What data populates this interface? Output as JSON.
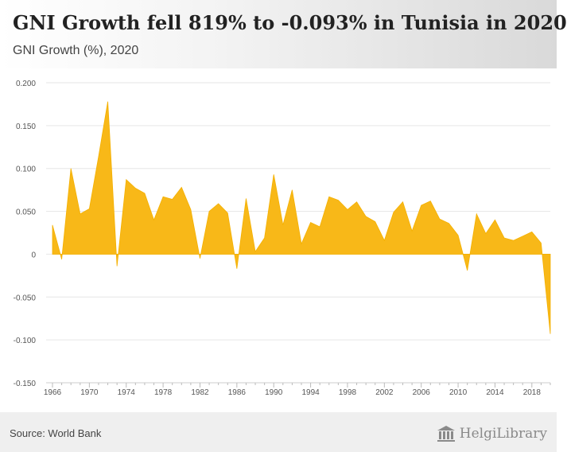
{
  "header": {
    "title": "GNI Growth fell 819% to -0.093% in Tunisia in 2020",
    "subtitle": "GNI Growth (%), 2020"
  },
  "footer": {
    "source": "Source: World Bank",
    "brand": "HelgiLibrary",
    "brand_icon": "library-building-icon"
  },
  "colors": {
    "area_fill": "#f8b818",
    "area_stroke": "#f4b000",
    "grid": "#e6e6e6",
    "axis_text": "#555555"
  },
  "chart_data": {
    "type": "area",
    "title": "GNI Growth fell 819% to -0.093% in Tunisia in 2020",
    "subtitle": "GNI Growth (%), 2020",
    "xlabel": "",
    "ylabel": "",
    "ylim": [
      -0.15,
      0.2
    ],
    "yticks": [
      0.2,
      0.15,
      0.1,
      0.05,
      0,
      -0.05,
      -0.1,
      -0.15
    ],
    "ytick_labels": [
      "0.200",
      "0.150",
      "0.100",
      "0.050",
      "0",
      "-0.050",
      "-0.100",
      "-0.150"
    ],
    "xticks": [
      1966,
      1970,
      1974,
      1978,
      1982,
      1986,
      1990,
      1994,
      1998,
      2002,
      2006,
      2010,
      2014,
      2018
    ],
    "grid": true,
    "legend": "none",
    "series": [
      {
        "x": [
          1966,
          1967,
          1968,
          1969,
          1970,
          1971,
          1972,
          1973,
          1974,
          1975,
          1976,
          1977,
          1978,
          1979,
          1980,
          1981,
          1982,
          1983,
          1984,
          1985,
          1986,
          1987,
          1988,
          1989,
          1990,
          1991,
          1992,
          1993,
          1994,
          1995,
          1996,
          1997,
          1998,
          1999,
          2000,
          2001,
          2002,
          2003,
          2004,
          2005,
          2006,
          2007,
          2008,
          2009,
          2010,
          2011,
          2012,
          2013,
          2014,
          2015,
          2016,
          2017,
          2018,
          2019,
          2020
        ],
        "values": [
          0.034,
          -0.006,
          0.1,
          0.047,
          0.053,
          0.114,
          0.178,
          -0.014,
          0.087,
          0.077,
          0.071,
          0.04,
          0.067,
          0.064,
          0.078,
          0.052,
          -0.005,
          0.05,
          0.059,
          0.048,
          -0.017,
          0.065,
          0.003,
          0.019,
          0.093,
          0.034,
          0.075,
          0.012,
          0.037,
          0.032,
          0.067,
          0.063,
          0.052,
          0.061,
          0.044,
          0.038,
          0.016,
          0.049,
          0.061,
          0.027,
          0.057,
          0.062,
          0.041,
          0.036,
          0.022,
          -0.019,
          0.047,
          0.024,
          0.04,
          0.019,
          0.016,
          0.021,
          0.026,
          0.013,
          -0.093
        ]
      }
    ]
  }
}
